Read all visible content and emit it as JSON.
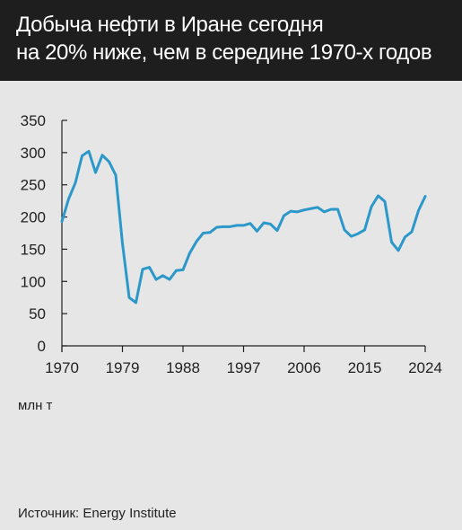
{
  "header": {
    "title_line1": "Добыча нефти в Иране сегодня",
    "title_line2": "на 20% ниже, чем в середине 1970-х годов"
  },
  "unit_label": "млн т",
  "source": "Источник: Energy Institute",
  "colors": {
    "header_bg": "#1e1e1e",
    "background": "#e6e6e6",
    "line": "#2b98c9",
    "axis": "#222222"
  },
  "chart_data": {
    "type": "line",
    "title": "Добыча нефти в Иране сегодня на 20% ниже, чем в середине 1970-х годов",
    "xlabel": "",
    "ylabel": "млн т",
    "xlim": [
      1970,
      2024
    ],
    "ylim": [
      0,
      350
    ],
    "grid": false,
    "x_ticks": [
      1970,
      1979,
      1988,
      1997,
      2006,
      2015,
      2024
    ],
    "y_ticks": [
      0,
      50,
      100,
      150,
      200,
      250,
      300,
      350
    ],
    "series": [
      {
        "x": [
          1970,
          1971,
          1972,
          1973,
          1974,
          1975,
          1976,
          1977,
          1978,
          1979,
          1980,
          1981,
          1982,
          1983,
          1984,
          1985,
          1986,
          1987,
          1988,
          1989,
          1990,
          1991,
          1992,
          1993,
          1994,
          1995,
          1996,
          1997,
          1998,
          1999,
          2000,
          2001,
          2002,
          2003,
          2004,
          2005,
          2006,
          2007,
          2008,
          2009,
          2010,
          2011,
          2012,
          2013,
          2014,
          2015,
          2016,
          2017,
          2018,
          2019,
          2020,
          2021,
          2022,
          2023,
          2024
        ],
        "values": [
          193,
          228,
          253,
          295,
          302,
          269,
          296,
          286,
          265,
          159,
          75,
          67,
          119,
          122,
          103,
          109,
          103,
          117,
          118,
          144,
          162,
          175,
          176,
          184,
          185,
          185,
          187,
          187,
          190,
          178,
          191,
          189,
          179,
          202,
          209,
          208,
          211,
          213,
          215,
          208,
          212,
          212,
          180,
          170,
          174,
          180,
          216,
          233,
          224,
          161,
          148,
          169,
          177,
          210,
          232
        ]
      }
    ]
  }
}
